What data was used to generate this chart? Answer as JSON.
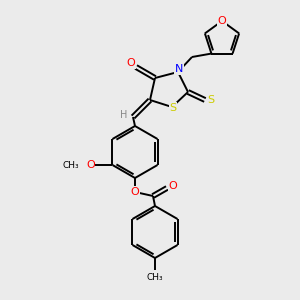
{
  "bg_color": "#ebebeb",
  "bond_color": "#000000",
  "atom_colors": {
    "O": "#ff0000",
    "N": "#0000ff",
    "S": "#cccc00",
    "C": "#000000",
    "H": "#888888"
  },
  "figsize": [
    3.0,
    3.0
  ],
  "dpi": 100
}
